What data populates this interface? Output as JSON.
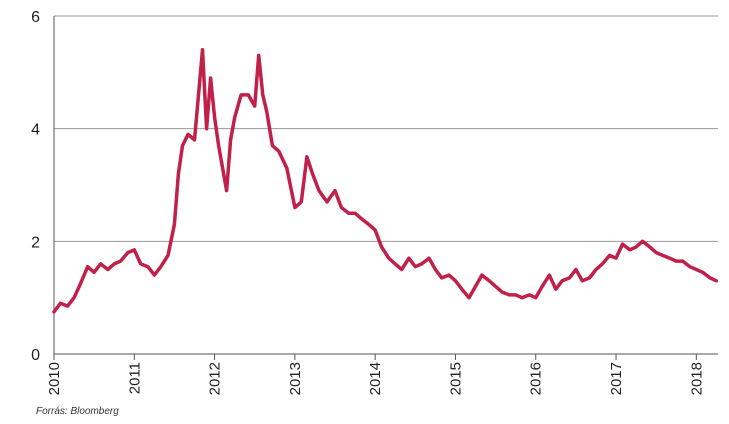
{
  "chart_data": {
    "type": "line",
    "title": "",
    "xlabel": "",
    "ylabel": "",
    "ylim": [
      0,
      6
    ],
    "xlim": [
      2010,
      2018.27
    ],
    "y_ticks": [
      "0",
      "2",
      "4",
      "6"
    ],
    "x_ticks": [
      "2010",
      "2011",
      "2012",
      "2013",
      "2014",
      "2015",
      "2016",
      "2017",
      "2018"
    ],
    "grid": "horizontal",
    "line_color": "#c0204a",
    "series": [
      {
        "x": [
          2010.0,
          2010.08,
          2010.17,
          2010.25,
          2010.33,
          2010.42,
          2010.5,
          2010.58,
          2010.67,
          2010.75,
          2010.83,
          2010.92,
          2011.0,
          2011.08,
          2011.17,
          2011.25,
          2011.33,
          2011.42,
          2011.5,
          2011.55,
          2011.6,
          2011.67,
          2011.75,
          2011.8,
          2011.85,
          2011.9,
          2011.95,
          2012.0,
          2012.05,
          2012.1,
          2012.15,
          2012.2,
          2012.25,
          2012.33,
          2012.42,
          2012.5,
          2012.55,
          2012.6,
          2012.65,
          2012.72,
          2012.8,
          2012.9,
          2013.0,
          2013.08,
          2013.15,
          2013.22,
          2013.3,
          2013.4,
          2013.5,
          2013.58,
          2013.67,
          2013.75,
          2013.83,
          2013.92,
          2014.0,
          2014.08,
          2014.17,
          2014.25,
          2014.33,
          2014.42,
          2014.5,
          2014.58,
          2014.67,
          2014.75,
          2014.83,
          2014.92,
          2015.0,
          2015.08,
          2015.17,
          2015.25,
          2015.33,
          2015.42,
          2015.5,
          2015.58,
          2015.67,
          2015.75,
          2015.83,
          2015.92,
          2016.0,
          2016.08,
          2016.17,
          2016.25,
          2016.33,
          2016.42,
          2016.5,
          2016.58,
          2016.67,
          2016.75,
          2016.83,
          2016.92,
          2017.0,
          2017.08,
          2017.17,
          2017.25,
          2017.33,
          2017.42,
          2017.5,
          2017.58,
          2017.67,
          2017.75,
          2017.83,
          2017.92,
          2018.0,
          2018.08,
          2018.17,
          2018.25
        ],
        "values": [
          0.75,
          0.9,
          0.85,
          1.0,
          1.25,
          1.55,
          1.45,
          1.6,
          1.5,
          1.6,
          1.65,
          1.8,
          1.85,
          1.6,
          1.55,
          1.4,
          1.55,
          1.75,
          2.3,
          3.2,
          3.7,
          3.9,
          3.8,
          4.6,
          5.4,
          4.0,
          4.9,
          4.2,
          3.7,
          3.3,
          2.9,
          3.8,
          4.2,
          4.6,
          4.6,
          4.4,
          5.3,
          4.6,
          4.3,
          3.7,
          3.6,
          3.3,
          2.6,
          2.7,
          3.5,
          3.2,
          2.9,
          2.7,
          2.9,
          2.6,
          2.5,
          2.5,
          2.4,
          2.3,
          2.2,
          1.9,
          1.7,
          1.6,
          1.5,
          1.7,
          1.55,
          1.6,
          1.7,
          1.5,
          1.35,
          1.4,
          1.3,
          1.15,
          1.0,
          1.2,
          1.4,
          1.3,
          1.2,
          1.1,
          1.05,
          1.05,
          1.0,
          1.05,
          1.0,
          1.2,
          1.4,
          1.15,
          1.3,
          1.35,
          1.5,
          1.3,
          1.35,
          1.5,
          1.6,
          1.75,
          1.7,
          1.95,
          1.85,
          1.9,
          2.0,
          1.9,
          1.8,
          1.75,
          1.7,
          1.65,
          1.65,
          1.55,
          1.5,
          1.45,
          1.35,
          1.3
        ]
      }
    ]
  },
  "source_note": "Forrás: Bloomberg"
}
